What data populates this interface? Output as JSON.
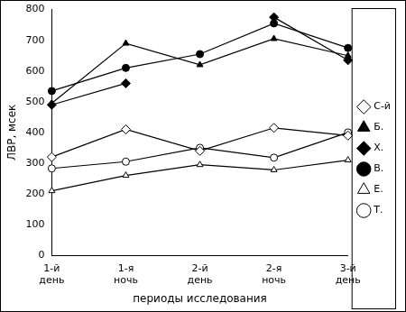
{
  "chart_data": {
    "type": "line",
    "x_label": "периоды исследования",
    "y_label": "ЛВР, мсек",
    "categories": [
      "1-й день",
      "1-я ночь",
      "2-й день",
      "2-я ночь",
      "3-й день"
    ],
    "series": [
      {
        "name": "С-й",
        "color": "#000000",
        "marker": "diamond-open",
        "values": [
          320,
          410,
          340,
          415,
          390
        ]
      },
      {
        "name": "Б.",
        "color": "#000000",
        "marker": "triangle",
        "values": [
          495,
          690,
          620,
          705,
          650
        ]
      },
      {
        "name": "Х.",
        "color": "#000000",
        "marker": "diamond",
        "values": [
          490,
          560,
          null,
          775,
          635
        ]
      },
      {
        "name": "В.",
        "color": "#000000",
        "marker": "circle",
        "values": [
          535,
          610,
          655,
          755,
          675
        ]
      },
      {
        "name": "Е.",
        "color": "#000000",
        "marker": "triangle-open",
        "values": [
          210,
          260,
          295,
          278,
          310
        ]
      },
      {
        "name": "Т.",
        "color": "#000000",
        "marker": "circle-open",
        "values": [
          283,
          305,
          350,
          318,
          400
        ]
      }
    ],
    "ylim": [
      0,
      800
    ],
    "yticks": [
      0,
      100,
      200,
      300,
      400,
      500,
      600,
      700,
      800
    ],
    "grid": false,
    "legend": "right"
  }
}
